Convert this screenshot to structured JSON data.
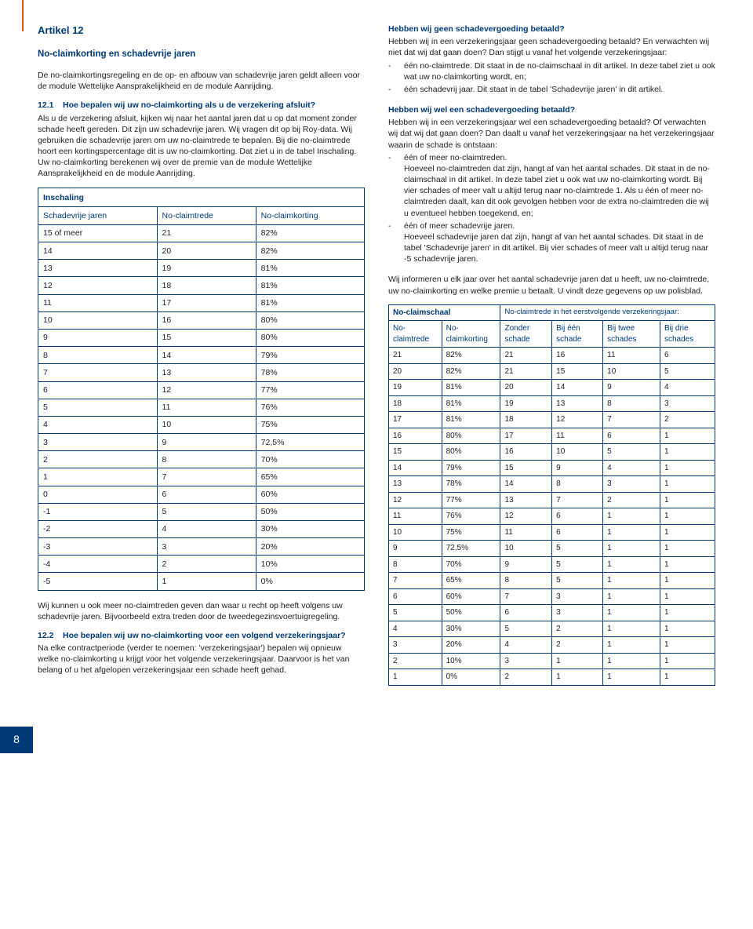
{
  "article": {
    "title": "Artikel 12",
    "subtitle": "No-claimkorting en schadevrije jaren",
    "intro": "De no-claimkortingsregeling en de op- en afbouw van schadevrije jaren geldt alleen voor de module Wettelijke Aansprakelijkheid en de module Aanrijding."
  },
  "s121": {
    "num": "12.1",
    "heading": "Hoe bepalen wij uw no-claimkorting als u de verzekering afsluit?",
    "body": "Als u de verzekering afsluit, kijken wij naar het aantal jaren dat u op dat moment zonder schade heeft gereden. Dit zijn uw schadevrije jaren. Wij vragen dit op bij Roy-data. Wij gebruiken die schadevrije jaren om uw no-claimtrede te bepalen. Bij die no-claimtrede hoort een kortingspercentage dit is uw no-claimkorting. Dat ziet u in de tabel Inschaling. Uw no-claimkorting berekenen wij over de premie van de module Wettelijke Aansprakelijkheid en de module Aanrijding."
  },
  "inschaling": {
    "title": "Inschaling",
    "columns": [
      "Schadevrije jaren",
      "No-claimtrede",
      "No-claimkorting"
    ],
    "rows": [
      [
        "15 of meer",
        "21",
        "82%"
      ],
      [
        "14",
        "20",
        "82%"
      ],
      [
        "13",
        "19",
        "81%"
      ],
      [
        "12",
        "18",
        "81%"
      ],
      [
        "11",
        "17",
        "81%"
      ],
      [
        "10",
        "16",
        "80%"
      ],
      [
        "9",
        "15",
        "80%"
      ],
      [
        "8",
        "14",
        "79%"
      ],
      [
        "7",
        "13",
        "78%"
      ],
      [
        "6",
        "12",
        "77%"
      ],
      [
        "5",
        "11",
        "76%"
      ],
      [
        "4",
        "10",
        "75%"
      ],
      [
        "3",
        "9",
        "72,5%"
      ],
      [
        "2",
        "8",
        "70%"
      ],
      [
        "1",
        "7",
        "65%"
      ],
      [
        "0",
        "6",
        "60%"
      ],
      [
        "-1",
        "5",
        "50%"
      ],
      [
        "-2",
        "4",
        "30%"
      ],
      [
        "-3",
        "3",
        "20%"
      ],
      [
        "-4",
        "2",
        "10%"
      ],
      [
        "-5",
        "1",
        "0%"
      ]
    ]
  },
  "afterTable1": "Wij kunnen u ook meer no-claimtreden geven dan waar u recht op heeft volgens uw schadevrije jaren. Bijvoorbeeld extra treden door de tweedegezinsvoertuigregeling.",
  "s122": {
    "num": "12.2",
    "heading": "Hoe bepalen wij uw no-claimkorting voor een volgend verzekeringsjaar?",
    "body": "Na elke contractperiode (verder te noemen: 'verzekeringsjaar') bepalen wij opnieuw welke no-claimkorting u krijgt voor het volgende verzekeringsjaar. Daarvoor is het van belang of u het afgelopen verzekeringsjaar een schade heeft gehad."
  },
  "right": {
    "q1_heading": "Hebben wij geen schadevergoeding betaald?",
    "q1_p1": "Hebben wij in een verzekeringsjaar geen schadevergoeding betaald? En verwachten wij niet dat wij dat gaan doen? Dan stijgt u vanaf het volgende verzekeringsjaar:",
    "q1_items": [
      "één no-claimtrede. Dit staat in de no-claimschaal in dit artikel. In deze tabel ziet u ook wat uw no-claimkorting wordt, en;",
      "één schadevrij jaar. Dit staat in de tabel 'Schadevrije jaren' in dit artikel."
    ],
    "q2_heading": "Hebben wij wel een schadevergoeding betaald?",
    "q2_p1": "Hebben wij in een verzekeringsjaar wel een schadevergoeding betaald? Of verwachten wij dat wij dat gaan doen? Dan daalt u vanaf het verzekeringsjaar na het verzekeringsjaar waarin de schade is ontstaan:",
    "q2_items": [
      "één of meer no-claimtreden.\nHoeveel no-claimtreden dat zijn, hangt af van het aantal schades. Dit staat in de no-claimschaal in dit artikel. In deze tabel ziet u ook wat uw no-claimkorting wordt. Bij vier schades of meer valt u altijd terug naar no-claimtrede 1. Als u één of meer no-claimtreden daalt, kan dit ook gevolgen hebben voor de extra no-claimtreden die wij u eventueel hebben toegekend, en;",
      "één of meer schadevrije jaren.\nHoeveel schadevrije jaren dat zijn, hangt af van het aantal schades. Dit staat in de tabel 'Schadevrije jaren' in dit artikel. Bij vier schades of meer valt u altijd terug naar -5 schadevrije jaren."
    ],
    "inform": "Wij informeren u elk jaar over het aantal schadevrije jaren dat u heeft, uw no-claimtrede, uw no-claimkorting en welke premie u betaalt. U vindt deze gegevens op uw polisblad."
  },
  "noclaimschaal": {
    "leftTitle": "No-claimschaal",
    "rightTitle": "No-claimtrede in het eerstvolgende verzekeringsjaar:",
    "leftColumns": [
      "No-claimtrede",
      "No-claimkorting"
    ],
    "rightColumns": [
      "Zonder schade",
      "Bij één schade",
      "Bij twee schades",
      "Bij drie schades"
    ],
    "rows": [
      [
        "21",
        "82%",
        "21",
        "16",
        "11",
        "6"
      ],
      [
        "20",
        "82%",
        "21",
        "15",
        "10",
        "5"
      ],
      [
        "19",
        "81%",
        "20",
        "14",
        "9",
        "4"
      ],
      [
        "18",
        "81%",
        "19",
        "13",
        "8",
        "3"
      ],
      [
        "17",
        "81%",
        "18",
        "12",
        "7",
        "2"
      ],
      [
        "16",
        "80%",
        "17",
        "11",
        "6",
        "1"
      ],
      [
        "15",
        "80%",
        "16",
        "10",
        "5",
        "1"
      ],
      [
        "14",
        "79%",
        "15",
        "9",
        "4",
        "1"
      ],
      [
        "13",
        "78%",
        "14",
        "8",
        "3",
        "1"
      ],
      [
        "12",
        "77%",
        "13",
        "7",
        "2",
        "1"
      ],
      [
        "11",
        "76%",
        "12",
        "6",
        "1",
        "1"
      ],
      [
        "10",
        "75%",
        "11",
        "6",
        "1",
        "1"
      ],
      [
        "9",
        "72,5%",
        "10",
        "5",
        "1",
        "1"
      ],
      [
        "8",
        "70%",
        "9",
        "5",
        "1",
        "1"
      ],
      [
        "7",
        "65%",
        "8",
        "5",
        "1",
        "1"
      ],
      [
        "6",
        "60%",
        "7",
        "3",
        "1",
        "1"
      ],
      [
        "5",
        "50%",
        "6",
        "3",
        "1",
        "1"
      ],
      [
        "4",
        "30%",
        "5",
        "2",
        "1",
        "1"
      ],
      [
        "3",
        "20%",
        "4",
        "2",
        "1",
        "1"
      ],
      [
        "2",
        "10%",
        "3",
        "1",
        "1",
        "1"
      ],
      [
        "1",
        "0%",
        "2",
        "1",
        "1",
        "1"
      ]
    ]
  },
  "pageNumber": "8",
  "colors": {
    "primary": "#003a78",
    "accent": "#e84e0f",
    "text": "#222222",
    "background": "#ffffff"
  }
}
